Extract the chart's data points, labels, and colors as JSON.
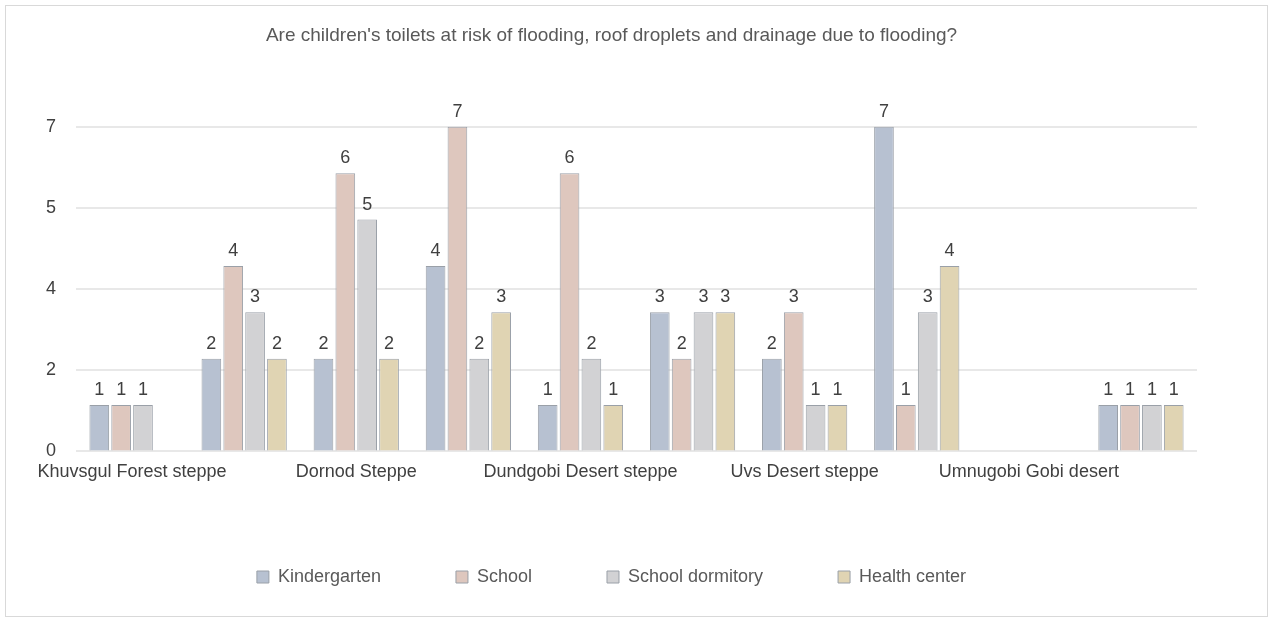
{
  "chart_data": {
    "type": "bar",
    "title": "Are children's toilets at risk of flooding, roof droplets and drainage due to flooding?",
    "categories": [
      "Khuvsgul Forest steppe",
      null,
      "Dornod Steppe",
      null,
      "Dundgobi Desert steppe",
      null,
      "Uvs Desert steppe",
      null,
      "Umnugobi Gobi desert",
      null
    ],
    "series": [
      {
        "name": "Kindergarten",
        "color": "#b7c1d1",
        "values": [
          1,
          2,
          2,
          4,
          1,
          3,
          2,
          7,
          null,
          1
        ]
      },
      {
        "name": "School",
        "color": "#dec7be",
        "values": [
          1,
          4,
          6,
          7,
          6,
          2,
          3,
          1,
          null,
          1
        ]
      },
      {
        "name": "School dormitory",
        "color": "#d2d2d4",
        "values": [
          1,
          3,
          5,
          2,
          2,
          3,
          1,
          3,
          null,
          1
        ]
      },
      {
        "name": "Health center",
        "color": "#e0d4b3",
        "values": [
          null,
          2,
          2,
          3,
          1,
          3,
          1,
          4,
          null,
          1
        ]
      }
    ],
    "ylim": [
      0,
      7
    ],
    "yticks": [
      0,
      {
        "value": 1.75,
        "label": "2"
      },
      {
        "value": 3.5,
        "label": "4"
      },
      {
        "value": 5.25,
        "label": "5"
      },
      {
        "value": 7,
        "label": "7"
      }
    ],
    "grid": "y",
    "legend": "bottom",
    "data_labels": true
  }
}
